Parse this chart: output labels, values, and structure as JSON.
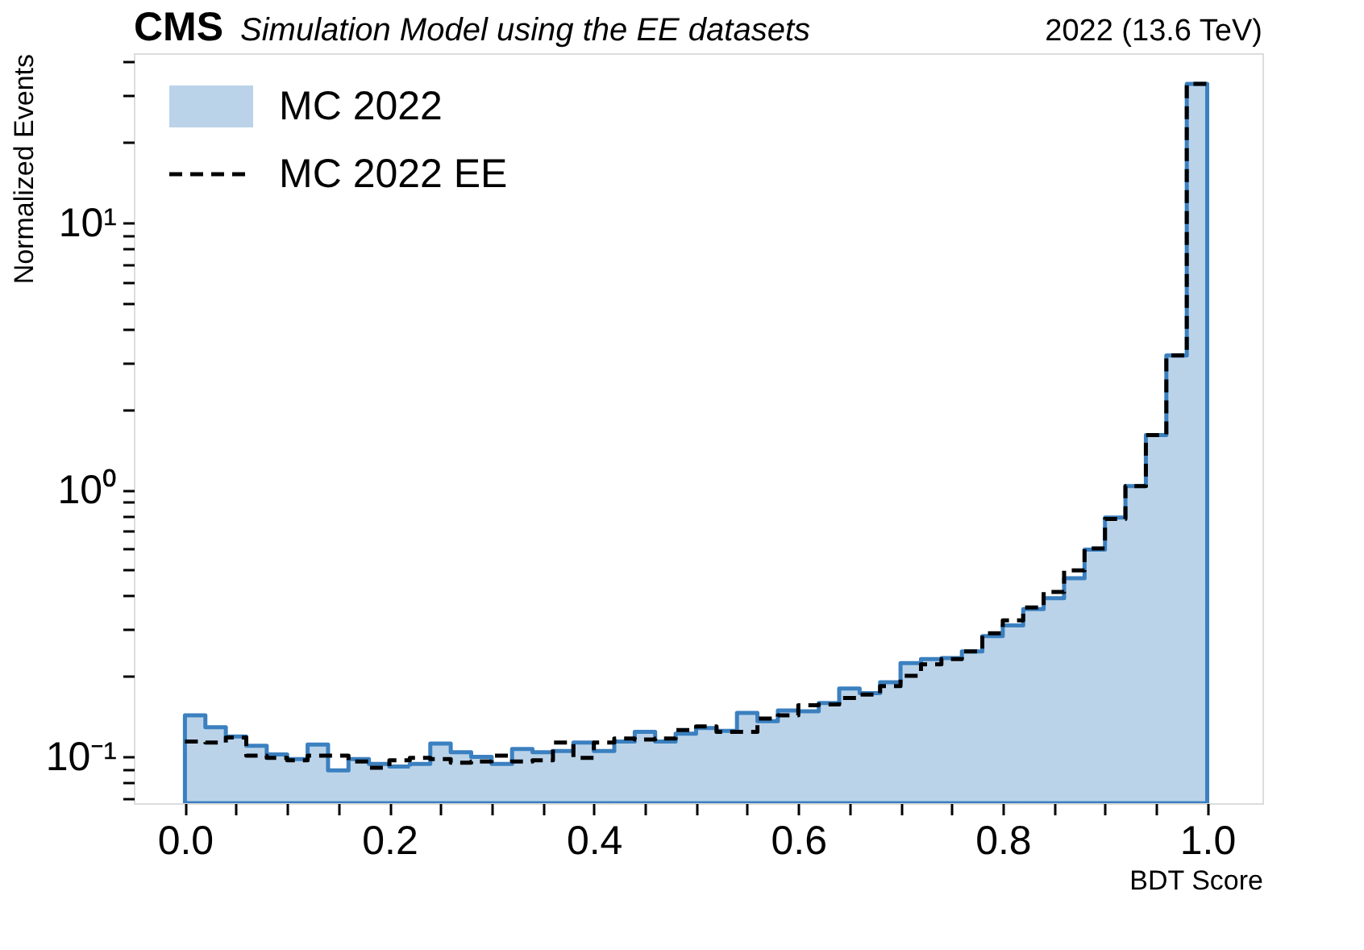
{
  "chart_data": {
    "type": "step",
    "title": "CMS",
    "subtitle": "Simulation Model using the EE datasets",
    "annotations": [
      "2022 (13.6 TeV)"
    ],
    "xlabel": "BDT Score",
    "ylabel": "Normalized Events",
    "x": [
      0.0,
      0.02,
      0.04,
      0.06,
      0.08,
      0.1,
      0.12,
      0.14,
      0.16,
      0.18,
      0.2,
      0.22,
      0.24,
      0.26,
      0.28,
      0.3,
      0.32,
      0.34,
      0.36,
      0.38,
      0.4,
      0.42,
      0.44,
      0.46,
      0.48,
      0.5,
      0.52,
      0.54,
      0.56,
      0.58,
      0.6,
      0.62,
      0.64,
      0.66,
      0.68,
      0.7,
      0.72,
      0.74,
      0.76,
      0.78,
      0.8,
      0.82,
      0.84,
      0.86,
      0.88,
      0.9,
      0.92,
      0.94,
      0.96,
      0.98,
      1.0
    ],
    "series": [
      {
        "name": "MC 2022",
        "type": "area",
        "color": "#3b80c0",
        "line_style": "solid",
        "values": [
          0.143,
          0.129,
          0.119,
          0.11,
          0.102,
          0.098,
          0.111,
          0.089,
          0.098,
          0.094,
          0.092,
          0.094,
          0.112,
          0.104,
          0.1,
          0.094,
          0.107,
          0.104,
          0.105,
          0.113,
          0.105,
          0.114,
          0.124,
          0.114,
          0.122,
          0.128,
          0.125,
          0.146,
          0.136,
          0.149,
          0.148,
          0.159,
          0.18,
          0.173,
          0.19,
          0.224,
          0.232,
          0.234,
          0.248,
          0.283,
          0.31,
          0.357,
          0.392,
          0.466,
          0.596,
          0.786,
          1.03,
          1.6,
          3.18,
          33,
          33
        ]
      },
      {
        "name": "MC 2022 EE",
        "type": "step",
        "color": "#000000",
        "line_style": "dashed",
        "values": [
          0.114,
          0.113,
          0.118,
          0.101,
          0.099,
          0.097,
          0.101,
          0.101,
          0.096,
          0.091,
          0.097,
          0.099,
          0.098,
          0.095,
          0.096,
          0.101,
          0.096,
          0.097,
          0.113,
          0.099,
          0.113,
          0.117,
          0.116,
          0.117,
          0.126,
          0.13,
          0.124,
          0.124,
          0.139,
          0.143,
          0.156,
          0.157,
          0.166,
          0.171,
          0.184,
          0.201,
          0.222,
          0.232,
          0.248,
          0.29,
          0.324,
          0.362,
          0.414,
          0.499,
          0.603,
          0.777,
          1.03,
          1.6,
          3.18,
          33,
          33
        ]
      }
    ],
    "xlim": [
      -0.05,
      1.054
    ],
    "xticks": [
      {
        "value": 0.0,
        "label": "0.0"
      },
      {
        "value": 0.05,
        "label": null
      },
      {
        "value": 0.1,
        "label": null
      },
      {
        "value": 0.15,
        "label": null
      },
      {
        "value": 0.2,
        "label": "0.2"
      },
      {
        "value": 0.25,
        "label": null
      },
      {
        "value": 0.3,
        "label": null
      },
      {
        "value": 0.35,
        "label": null
      },
      {
        "value": 0.4,
        "label": "0.4"
      },
      {
        "value": 0.45,
        "label": null
      },
      {
        "value": 0.5,
        "label": null
      },
      {
        "value": 0.55,
        "label": null
      },
      {
        "value": 0.6,
        "label": "0.6"
      },
      {
        "value": 0.65,
        "label": null
      },
      {
        "value": 0.7,
        "label": null
      },
      {
        "value": 0.75,
        "label": null
      },
      {
        "value": 0.8,
        "label": "0.8"
      },
      {
        "value": 0.85,
        "label": null
      },
      {
        "value": 0.9,
        "label": null
      },
      {
        "value": 0.95,
        "label": null
      },
      {
        "value": 1.0,
        "label": "1.0"
      }
    ],
    "ylim": [
      0.067,
      43
    ],
    "log": "y",
    "yticks": [
      {
        "value": 0.07,
        "label": null
      },
      {
        "value": 0.08,
        "label": null
      },
      {
        "value": 0.09,
        "label": null
      },
      {
        "value": 0.1,
        "label": "10⁻¹"
      },
      {
        "value": 0.2,
        "label": null
      },
      {
        "value": 0.3,
        "label": null
      },
      {
        "value": 0.4,
        "label": null
      },
      {
        "value": 0.5,
        "label": null
      },
      {
        "value": 0.6,
        "label": null
      },
      {
        "value": 0.7,
        "label": null
      },
      {
        "value": 0.8,
        "label": null
      },
      {
        "value": 0.9,
        "label": null
      },
      {
        "value": 1,
        "label": "10⁰"
      },
      {
        "value": 2,
        "label": null
      },
      {
        "value": 3,
        "label": null
      },
      {
        "value": 4,
        "label": null
      },
      {
        "value": 5,
        "label": null
      },
      {
        "value": 6,
        "label": null
      },
      {
        "value": 7,
        "label": null
      },
      {
        "value": 8,
        "label": null
      },
      {
        "value": 9,
        "label": null
      },
      {
        "value": 10,
        "label": "10¹"
      },
      {
        "value": 20,
        "label": null
      },
      {
        "value": 30,
        "label": null
      },
      {
        "value": 40,
        "label": null
      }
    ],
    "grid": false,
    "legend": "top left"
  }
}
